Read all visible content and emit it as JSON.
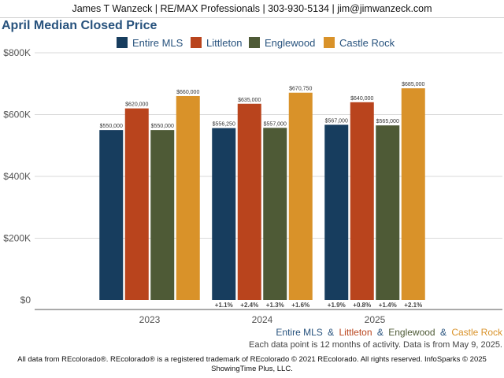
{
  "header": {
    "text": "James T Wanzeck | RE/MAX Professionals | 303-930-5134 | jim@jimwanzeck.com"
  },
  "colors": {
    "entire": "#173d5e",
    "littleton": "#b9441d",
    "englewood": "#4e5a36",
    "castle": "#d99229",
    "title": "#27527d"
  },
  "chart_data": {
    "type": "bar",
    "title": "April Median Closed Price",
    "categories": [
      "2023",
      "2024",
      "2025"
    ],
    "series": [
      {
        "name": "Entire MLS",
        "values": [
          550000,
          556250,
          567000
        ],
        "labels": [
          "$550,000",
          "$556,250",
          "$567,000"
        ],
        "changes": [
          "",
          "+1.1%",
          "+1.9%"
        ]
      },
      {
        "name": "Littleton",
        "values": [
          620000,
          635000,
          640000
        ],
        "labels": [
          "$620,000",
          "$635,000",
          "$640,000"
        ],
        "changes": [
          "",
          "+2.4%",
          "+0.8%"
        ]
      },
      {
        "name": "Englewood",
        "values": [
          550000,
          557000,
          565000
        ],
        "labels": [
          "$550,000",
          "$557,000",
          "$565,000"
        ],
        "changes": [
          "",
          "+1.3%",
          "+1.4%"
        ]
      },
      {
        "name": "Castle Rock",
        "values": [
          660000,
          670750,
          685000
        ],
        "labels": [
          "$660,000",
          "$670,750",
          "$685,000"
        ],
        "changes": [
          "",
          "+1.6%",
          "+2.1%"
        ]
      }
    ],
    "yticks": [
      0,
      200000,
      400000,
      600000,
      800000
    ],
    "ytick_labels": [
      "$0",
      "$200K",
      "$400K",
      "$600K",
      "$800K"
    ],
    "ylim": [
      0,
      800000
    ],
    "grid": true,
    "legend_position": "top"
  },
  "footer": {
    "series_names": [
      "Entire MLS",
      "Littleton",
      "Englewood",
      "Castle Rock"
    ],
    "separator": "&",
    "note": "Each data point is 12 months of activity. Data is from May 9, 2025.",
    "copyright_line1": "All data from REcolorado®. REcolorado® is a registered trademark of REcolorado © 2021 REcolorado. All rights reserved. InfoSparks © 2025",
    "copyright_line2": "ShowingTime Plus, LLC."
  }
}
